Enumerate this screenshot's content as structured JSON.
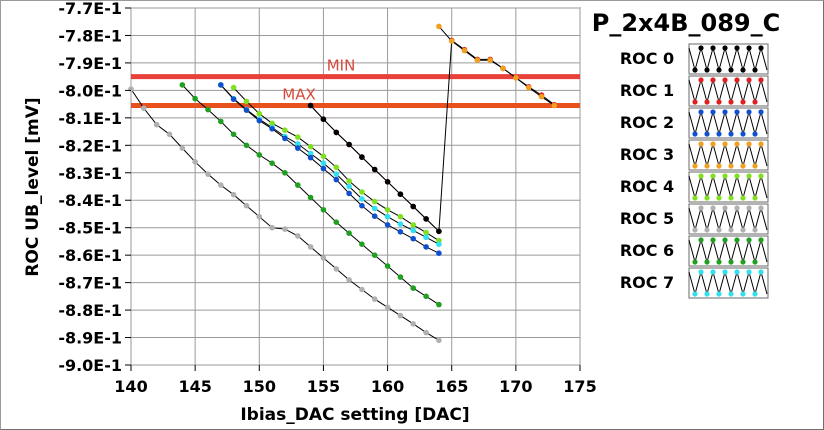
{
  "chart_data": {
    "type": "line",
    "title": "P_2x4B_089_C",
    "xlabel": "Ibias_DAC setting [DAC]",
    "ylabel": "ROC UB_level [mV]",
    "xlim": [
      140,
      175
    ],
    "ylim": [
      -0.9,
      -0.77
    ],
    "x_ticks": [
      "140",
      "145",
      "150",
      "155",
      "160",
      "165",
      "170",
      "175"
    ],
    "y_ticks": [
      "-7.7E-1",
      "-7.8E-1",
      "-7.9E-1",
      "-8.0E-1",
      "-8.1E-1",
      "-8.2E-1",
      "-8.3E-1",
      "-8.4E-1",
      "-8.5E-1",
      "-8.6E-1",
      "-8.7E-1",
      "-8.8E-1",
      "-8.9E-1",
      "-9.0E-1"
    ],
    "grid": true,
    "legend_position": "right",
    "reference_lines": [
      {
        "label": "MIN",
        "y": -0.795,
        "color": "#e8413a"
      },
      {
        "label": "MAX",
        "y": -0.8055,
        "color": "#e8501e"
      }
    ],
    "series": [
      {
        "name": "ROC 0",
        "color": "#000000",
        "x": [
          154,
          155,
          156,
          157,
          158,
          159,
          160,
          161,
          162,
          163,
          164
        ],
        "y": [
          -0.8055,
          -0.8105,
          -0.8153,
          -0.8197,
          -0.8243,
          -0.8288,
          -0.8333,
          -0.8378,
          -0.8423,
          -0.8468,
          -0.8513
        ]
      },
      {
        "name": "ROC 1",
        "color": "#e02020",
        "x": [
          154,
          155,
          156,
          157,
          158,
          159,
          160,
          161,
          162,
          163,
          164,
          165,
          166,
          167,
          168,
          169,
          170,
          171,
          172,
          173
        ],
        "y": [
          -0.8055,
          -0.8105,
          -0.8153,
          -0.8197,
          -0.8243,
          -0.8288,
          -0.8333,
          -0.8378,
          -0.8423,
          -0.8468,
          -0.8513,
          -0.7818,
          -0.7852,
          -0.7887,
          -0.7887,
          -0.792,
          -0.7954,
          -0.7987,
          -0.8017,
          -0.8052
        ]
      },
      {
        "name": "ROC 2",
        "color": "#1050d0",
        "x": [
          147,
          148,
          149,
          150,
          151,
          152,
          153,
          154,
          155,
          156,
          157,
          158,
          159,
          160,
          161,
          162,
          163,
          164
        ],
        "y": [
          -0.798,
          -0.8032,
          -0.8072,
          -0.811,
          -0.814,
          -0.8175,
          -0.821,
          -0.8245,
          -0.8285,
          -0.8325,
          -0.8375,
          -0.842,
          -0.8458,
          -0.849,
          -0.8515,
          -0.854,
          -0.857,
          -0.8593
        ]
      },
      {
        "name": "ROC 3",
        "color": "#f0a020",
        "x": [
          164,
          165,
          166,
          167,
          168,
          169,
          170,
          171,
          172,
          173
        ],
        "y": [
          -0.7767,
          -0.782,
          -0.7855,
          -0.789,
          -0.789,
          -0.792,
          -0.7954,
          -0.799,
          -0.8023,
          -0.8055
        ]
      },
      {
        "name": "ROC 4",
        "color": "#80e020",
        "x": [
          148,
          149,
          150,
          151,
          152,
          153,
          154,
          155,
          156,
          157,
          158,
          159,
          160,
          161,
          162,
          163,
          164
        ],
        "y": [
          -0.799,
          -0.804,
          -0.8085,
          -0.812,
          -0.8145,
          -0.817,
          -0.8205,
          -0.824,
          -0.828,
          -0.833,
          -0.837,
          -0.8405,
          -0.8435,
          -0.846,
          -0.849,
          -0.8518,
          -0.8547
        ]
      },
      {
        "name": "ROC 5",
        "color": "#b0b0b0",
        "x": [
          140,
          141,
          142,
          143,
          144,
          145,
          146,
          147,
          148,
          149,
          150,
          151,
          152,
          153,
          154,
          155,
          156,
          157,
          158,
          159,
          160,
          161,
          162,
          163,
          164
        ],
        "y": [
          -0.7995,
          -0.8065,
          -0.8125,
          -0.816,
          -0.821,
          -0.826,
          -0.8305,
          -0.8345,
          -0.838,
          -0.842,
          -0.846,
          -0.85,
          -0.8505,
          -0.853,
          -0.857,
          -0.861,
          -0.865,
          -0.869,
          -0.8725,
          -0.876,
          -0.879,
          -0.882,
          -0.885,
          -0.8882,
          -0.891
        ]
      },
      {
        "name": "ROC 6",
        "color": "#20a020",
        "x": [
          144,
          145,
          146,
          147,
          148,
          149,
          150,
          151,
          152,
          153,
          154,
          155,
          156,
          157,
          158,
          159,
          160,
          161,
          162,
          163,
          164
        ],
        "y": [
          -0.798,
          -0.803,
          -0.807,
          -0.8113,
          -0.816,
          -0.82,
          -0.8235,
          -0.8265,
          -0.83,
          -0.8345,
          -0.839,
          -0.8435,
          -0.848,
          -0.852,
          -0.856,
          -0.86,
          -0.864,
          -0.868,
          -0.872,
          -0.875,
          -0.878
        ]
      },
      {
        "name": "ROC 7",
        "color": "#30e0f0",
        "x": [
          147,
          148,
          149,
          150,
          151,
          152,
          153,
          154,
          155,
          156,
          157,
          158,
          159,
          160,
          161,
          162,
          163,
          164
        ],
        "y": [
          -0.798,
          -0.803,
          -0.807,
          -0.8105,
          -0.8135,
          -0.8168,
          -0.8195,
          -0.823,
          -0.8265,
          -0.8305,
          -0.835,
          -0.8395,
          -0.843,
          -0.846,
          -0.8487,
          -0.851,
          -0.8535,
          -0.856
        ]
      }
    ]
  }
}
